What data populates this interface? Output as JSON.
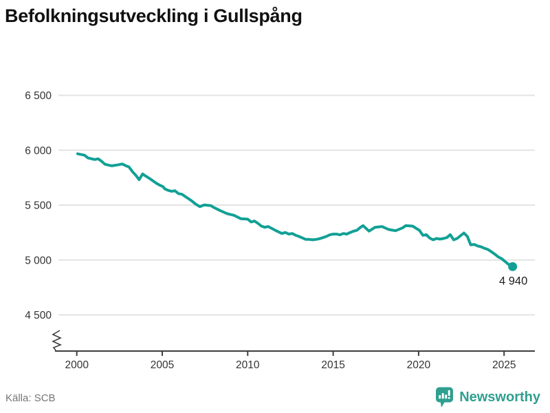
{
  "header": {
    "title": "Befolkningsutveckling i Gullspång"
  },
  "footer": {
    "source": "Källa: SCB",
    "brand": "Newsworthy"
  },
  "colors": {
    "line": "#12a095",
    "grid": "#e3e3e3",
    "axis": "#3d3d3d",
    "tick_label": "#333333",
    "title": "#111111",
    "source": "#757575",
    "brand": "#2f9f90",
    "end_label": "#222222"
  },
  "chart_data": {
    "type": "line",
    "title": "Befolkningsutveckling i Gullspång",
    "xlabel": "",
    "ylabel": "",
    "legend": "none",
    "grid": "horizontal",
    "axis_break_bottom_left": true,
    "x_ticks": [
      2000,
      2005,
      2010,
      2015,
      2020,
      2025
    ],
    "xlim": [
      1998.7,
      2026.8
    ],
    "y_ticks": [
      {
        "value": 6500,
        "label": "6 500"
      },
      {
        "value": 6000,
        "label": "6 000"
      },
      {
        "value": 5500,
        "label": "5 500"
      },
      {
        "value": 5000,
        "label": "5 000"
      },
      {
        "value": 4500,
        "label": "4 500"
      }
    ],
    "ylim": [
      4350,
      6600
    ],
    "end_point": {
      "year": 2025.5,
      "value": 4940,
      "label": "4 940"
    },
    "series": [
      {
        "name": "Befolkning i Gullspång",
        "points": [
          [
            2000.05,
            5968
          ],
          [
            2000.45,
            5955
          ],
          [
            2000.65,
            5930
          ],
          [
            2001.05,
            5915
          ],
          [
            2001.25,
            5922
          ],
          [
            2001.45,
            5900
          ],
          [
            2001.65,
            5872
          ],
          [
            2002.05,
            5858
          ],
          [
            2002.45,
            5868
          ],
          [
            2002.65,
            5875
          ],
          [
            2002.85,
            5860
          ],
          [
            2003.05,
            5848
          ],
          [
            2003.25,
            5806
          ],
          [
            2003.45,
            5772
          ],
          [
            2003.65,
            5732
          ],
          [
            2003.85,
            5784
          ],
          [
            2004.05,
            5763
          ],
          [
            2004.25,
            5743
          ],
          [
            2004.45,
            5722
          ],
          [
            2004.65,
            5700
          ],
          [
            2004.85,
            5682
          ],
          [
            2005.05,
            5668
          ],
          [
            2005.15,
            5648
          ],
          [
            2005.35,
            5634
          ],
          [
            2005.55,
            5626
          ],
          [
            2005.75,
            5631
          ],
          [
            2005.95,
            5605
          ],
          [
            2006.15,
            5599
          ],
          [
            2006.35,
            5578
          ],
          [
            2006.55,
            5557
          ],
          [
            2006.75,
            5536
          ],
          [
            2006.95,
            5510
          ],
          [
            2007.2,
            5486
          ],
          [
            2007.45,
            5501
          ],
          [
            2007.85,
            5495
          ],
          [
            2008.0,
            5480
          ],
          [
            2008.4,
            5449
          ],
          [
            2008.8,
            5422
          ],
          [
            2009.2,
            5407
          ],
          [
            2009.6,
            5376
          ],
          [
            2010.0,
            5372
          ],
          [
            2010.2,
            5347
          ],
          [
            2010.4,
            5355
          ],
          [
            2010.6,
            5334
          ],
          [
            2010.8,
            5309
          ],
          [
            2011.0,
            5298
          ],
          [
            2011.2,
            5305
          ],
          [
            2011.4,
            5288
          ],
          [
            2011.6,
            5272
          ],
          [
            2011.8,
            5257
          ],
          [
            2012.0,
            5242
          ],
          [
            2012.2,
            5251
          ],
          [
            2012.4,
            5236
          ],
          [
            2012.6,
            5242
          ],
          [
            2012.8,
            5226
          ],
          [
            2013.0,
            5215
          ],
          [
            2013.2,
            5201
          ],
          [
            2013.4,
            5188
          ],
          [
            2013.6,
            5188
          ],
          [
            2013.8,
            5184
          ],
          [
            2014.0,
            5188
          ],
          [
            2014.2,
            5194
          ],
          [
            2014.4,
            5204
          ],
          [
            2014.6,
            5215
          ],
          [
            2014.8,
            5229
          ],
          [
            2015.0,
            5236
          ],
          [
            2015.2,
            5236
          ],
          [
            2015.4,
            5229
          ],
          [
            2015.6,
            5242
          ],
          [
            2015.8,
            5236
          ],
          [
            2016.0,
            5251
          ],
          [
            2016.2,
            5263
          ],
          [
            2016.4,
            5272
          ],
          [
            2016.6,
            5298
          ],
          [
            2016.75,
            5313
          ],
          [
            2017.1,
            5263
          ],
          [
            2017.45,
            5298
          ],
          [
            2017.85,
            5305
          ],
          [
            2018.25,
            5278
          ],
          [
            2018.65,
            5267
          ],
          [
            2019.05,
            5292
          ],
          [
            2019.25,
            5313
          ],
          [
            2019.65,
            5309
          ],
          [
            2020.05,
            5270
          ],
          [
            2020.25,
            5225
          ],
          [
            2020.45,
            5231
          ],
          [
            2020.65,
            5200
          ],
          [
            2020.85,
            5184
          ],
          [
            2021.05,
            5196
          ],
          [
            2021.25,
            5190
          ],
          [
            2021.45,
            5196
          ],
          [
            2021.65,
            5204
          ],
          [
            2021.85,
            5231
          ],
          [
            2022.05,
            5184
          ],
          [
            2022.25,
            5196
          ],
          [
            2022.45,
            5221
          ],
          [
            2022.65,
            5246
          ],
          [
            2022.85,
            5215
          ],
          [
            2023.05,
            5138
          ],
          [
            2023.25,
            5142
          ],
          [
            2023.45,
            5128
          ],
          [
            2023.65,
            5121
          ],
          [
            2023.85,
            5107
          ],
          [
            2024.05,
            5096
          ],
          [
            2024.25,
            5076
          ],
          [
            2024.45,
            5054
          ],
          [
            2024.65,
            5029
          ],
          [
            2024.85,
            5013
          ],
          [
            2025.05,
            4988
          ],
          [
            2025.25,
            4962
          ],
          [
            2025.5,
            4940
          ]
        ]
      }
    ]
  }
}
